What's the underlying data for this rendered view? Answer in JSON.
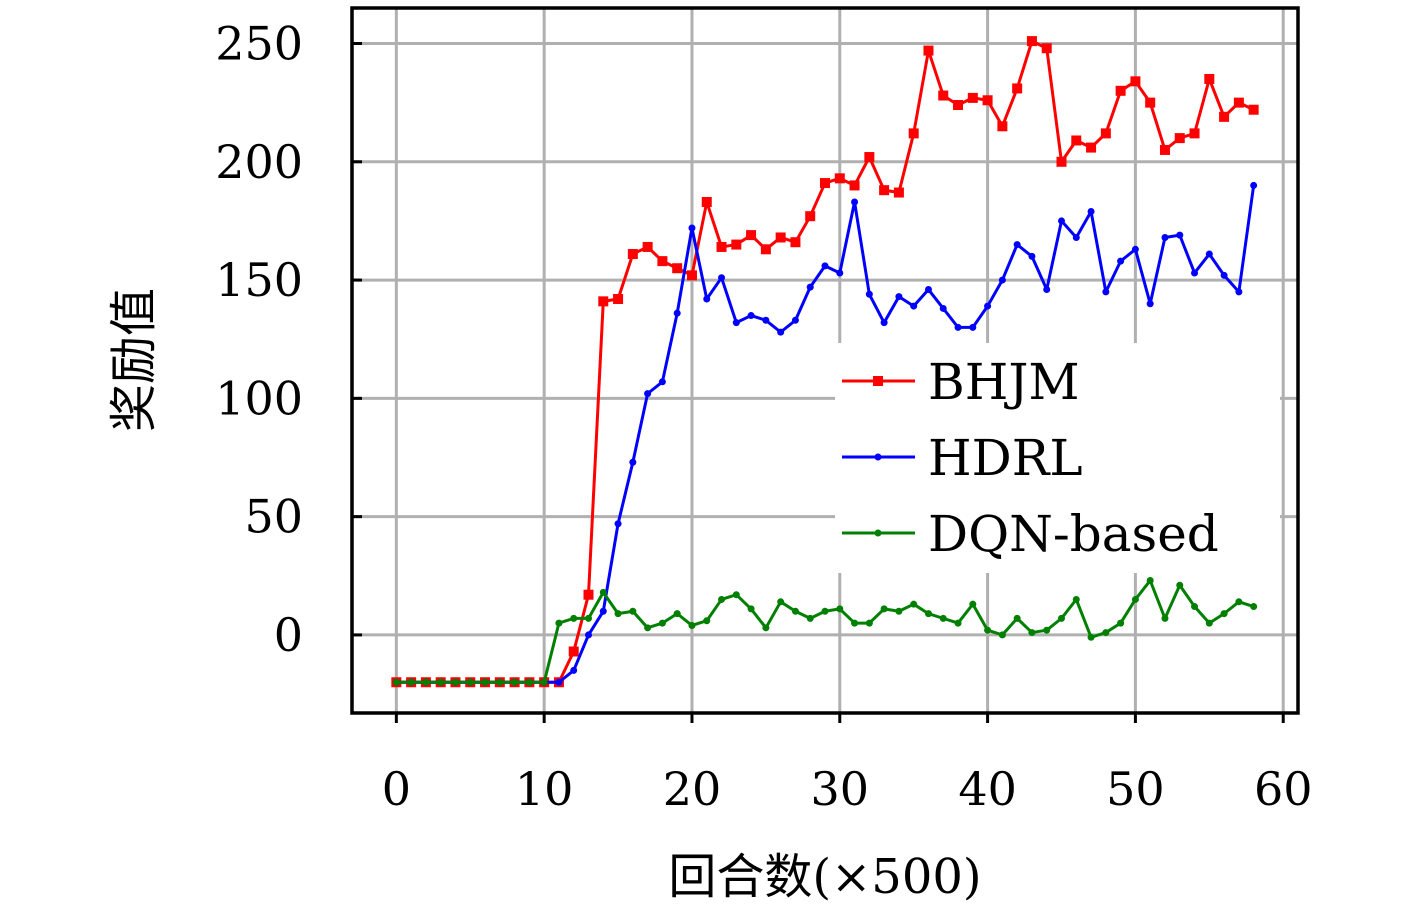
{
  "chart_data": {
    "type": "line",
    "xlabel": "回合数(×500)",
    "ylabel": "奖励值",
    "xlim": [
      -3,
      61
    ],
    "ylim": [
      -33,
      265
    ],
    "xticks": [
      "0",
      "10",
      "20",
      "30",
      "40",
      "50",
      "60"
    ],
    "yticks": [
      "0",
      "50",
      "100",
      "150",
      "200",
      "250"
    ],
    "grid": true,
    "legend_position": "center-right",
    "x": [
      0,
      1,
      2,
      3,
      4,
      5,
      6,
      7,
      8,
      9,
      10,
      11,
      12,
      13,
      14,
      15,
      16,
      17,
      18,
      19,
      20,
      21,
      22,
      23,
      24,
      25,
      26,
      27,
      28,
      29,
      30,
      31,
      32,
      33,
      34,
      35,
      36,
      37,
      38,
      39,
      40,
      41,
      42,
      43,
      44,
      45,
      46,
      47,
      48,
      49,
      50,
      51,
      52,
      53,
      54,
      55,
      56,
      57,
      58
    ],
    "series": [
      {
        "name": "BHJM",
        "color": "#ff0000",
        "marker": "square",
        "values": [
          -20,
          -20,
          -20,
          -20,
          -20,
          -20,
          -20,
          -20,
          -20,
          -20,
          -20,
          -20,
          -7,
          17,
          141,
          142,
          161,
          164,
          158,
          155,
          152,
          183,
          164,
          165,
          169,
          163,
          168,
          166,
          177,
          191,
          193,
          190,
          202,
          188,
          187,
          212,
          247,
          228,
          224,
          227,
          226,
          215,
          231,
          251,
          248,
          200,
          209,
          206,
          212,
          230,
          234,
          225,
          205,
          210,
          212,
          235,
          219,
          225,
          222
        ]
      },
      {
        "name": "HDRL",
        "color": "#0000ff",
        "marker": "circle",
        "values": [
          -20,
          -20,
          -20,
          -20,
          -20,
          -20,
          -20,
          -20,
          -20,
          -20,
          -20,
          -20,
          -15,
          0,
          10,
          47,
          73,
          102,
          107,
          136,
          172,
          142,
          151,
          132,
          135,
          133,
          128,
          133,
          147,
          156,
          153,
          183,
          144,
          132,
          143,
          139,
          146,
          138,
          130,
          130,
          139,
          150,
          165,
          160,
          146,
          175,
          168,
          179,
          145,
          158,
          163,
          140,
          168,
          169,
          153,
          161,
          152,
          145,
          190
        ]
      },
      {
        "name": "DQN-based",
        "color": "#008000",
        "marker": "circle",
        "values": [
          -20,
          -20,
          -20,
          -20,
          -20,
          -20,
          -20,
          -20,
          -20,
          -20,
          -20,
          5,
          7,
          7,
          18,
          9,
          10,
          3,
          5,
          9,
          4,
          6,
          15,
          17,
          11,
          3,
          14,
          10,
          7,
          10,
          11,
          5,
          5,
          11,
          10,
          13,
          9,
          7,
          5,
          13,
          2,
          0,
          7,
          1,
          2,
          7,
          15,
          -1,
          1,
          5,
          15,
          23,
          7,
          21,
          12,
          5,
          9,
          14,
          12
        ]
      }
    ]
  }
}
